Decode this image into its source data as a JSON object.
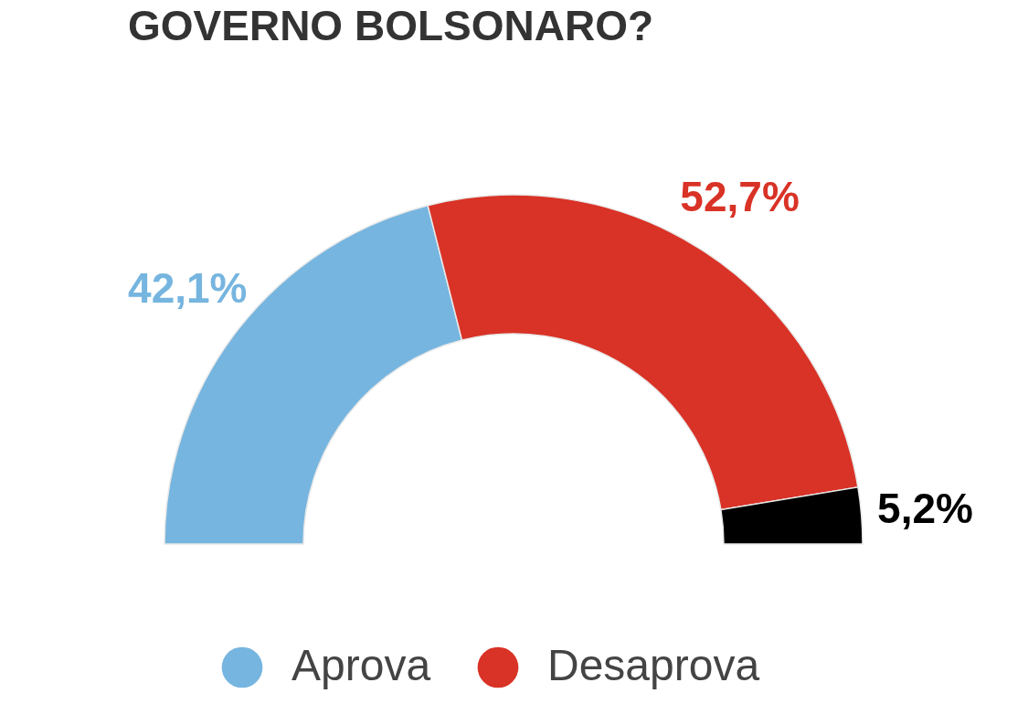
{
  "chart_data": {
    "type": "donut",
    "title": "GOVERNO BOLSONARO?",
    "categories": [
      "Aprova",
      "Desaprova",
      null
    ],
    "values": [
      42.1,
      52.7,
      5.2
    ],
    "colors": [
      "#76b5df",
      "#d93226",
      "#000000"
    ],
    "value_labels": [
      "42,1%",
      "52,7%",
      "5,2%"
    ],
    "legend": "bottom"
  }
}
